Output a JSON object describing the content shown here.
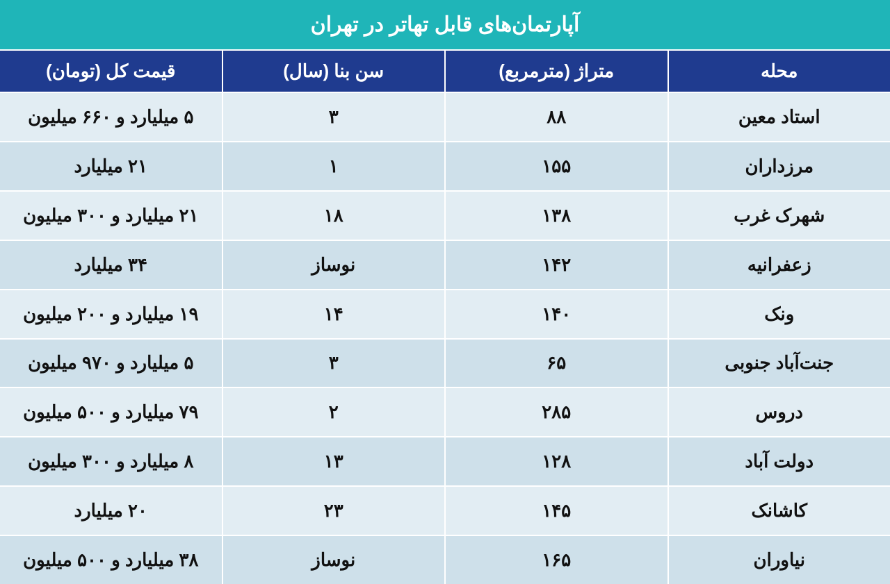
{
  "table": {
    "type": "table",
    "title": "آپارتمان‌های قابل تهاتر در تهران",
    "title_bg": "#1fb5b8",
    "title_color": "#ffffff",
    "title_fontsize": 30,
    "header_bg": "#1f3b8f",
    "header_color": "#ffffff",
    "header_fontsize": 26,
    "row_even_bg": "#e2edf3",
    "row_odd_bg": "#cee0ea",
    "cell_color": "#111111",
    "cell_fontsize": 26,
    "border_color": "#ffffff",
    "columns": [
      "محله",
      "متراژ (مترمربع)",
      "سن بنا (سال)",
      "قیمت کل (تومان)"
    ],
    "rows": [
      {
        "neighborhood": "استاد معین",
        "area": "۸۸",
        "age": "۳",
        "price": "۵ میلیارد و ۶۶۰ میلیون"
      },
      {
        "neighborhood": "مرزداران",
        "area": "۱۵۵",
        "age": "۱",
        "price": "۲۱ میلیارد"
      },
      {
        "neighborhood": "شهرک غرب",
        "area": "۱۳۸",
        "age": "۱۸",
        "price": "۲۱ میلیارد و ۳۰۰ میلیون"
      },
      {
        "neighborhood": "زعفرانیه",
        "area": "۱۴۲",
        "age": "نوساز",
        "price": "۳۴ میلیارد"
      },
      {
        "neighborhood": "ونک",
        "area": "۱۴۰",
        "age": "۱۴",
        "price": "۱۹ میلیارد و ۲۰۰ میلیون"
      },
      {
        "neighborhood": "جنت‌آباد جنوبی",
        "area": "۶۵",
        "age": "۳",
        "price": "۵ میلیارد و ۹۷۰ میلیون"
      },
      {
        "neighborhood": "دروس",
        "area": "۲۸۵",
        "age": "۲",
        "price": "۷۹ میلیارد و ۵۰۰ میلیون"
      },
      {
        "neighborhood": "دولت آباد",
        "area": "۱۲۸",
        "age": "۱۳",
        "price": "۸ میلیارد و ۳۰۰ میلیون"
      },
      {
        "neighborhood": "کاشانک",
        "area": "۱۴۵",
        "age": "۲۳",
        "price": "۲۰ میلیارد"
      },
      {
        "neighborhood": "نیاوران",
        "area": "۱۶۵",
        "age": "نوساز",
        "price": "۳۸ میلیارد و ۵۰۰ میلیون"
      }
    ]
  }
}
